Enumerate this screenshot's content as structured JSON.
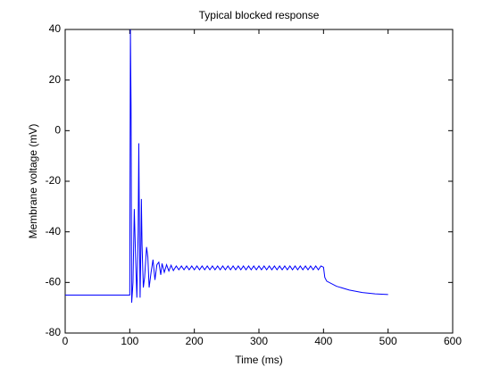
{
  "chart_data": {
    "type": "line",
    "title": "Typical blocked response",
    "x_label": "Time (ms)",
    "y_label": "Membrane voltage (mV)",
    "xlim": [
      0,
      600
    ],
    "ylim": [
      -80,
      40
    ],
    "xticks": [
      0,
      100,
      200,
      300,
      400,
      500,
      600
    ],
    "yticks": [
      -80,
      -60,
      -40,
      -20,
      0,
      20,
      40
    ],
    "x": [
      0,
      100,
      101,
      102,
      103,
      105,
      107,
      109,
      111,
      113,
      114,
      115,
      116,
      117,
      118,
      119,
      121,
      123,
      126,
      128,
      130,
      133,
      136,
      139,
      142,
      145,
      148,
      150,
      153.5,
      157,
      160.5,
      164,
      167.5,
      172,
      176,
      180,
      184,
      188,
      192,
      196,
      200,
      204,
      208,
      212,
      216,
      220,
      224,
      228,
      232,
      236,
      240,
      244,
      248,
      252,
      256,
      260,
      264,
      268,
      272,
      276,
      280,
      284,
      288,
      292,
      296,
      300,
      304,
      308,
      312,
      316,
      320,
      324,
      328,
      332,
      336,
      340,
      344,
      348,
      352,
      356,
      360,
      364,
      368,
      372,
      376,
      380,
      384,
      388,
      392,
      396,
      400,
      402,
      405,
      420,
      440,
      460,
      480,
      500
    ],
    "series": [
      {
        "color": "#0000ff",
        "values": [
          -65,
          -65,
          40,
          10,
          -68,
          -60,
          -31,
          -50,
          -66,
          -40,
          -5,
          -40,
          -66,
          -50,
          -27,
          -45,
          -62,
          -58,
          -46,
          -50,
          -62,
          -56,
          -51,
          -59,
          -53,
          -52,
          -57,
          -52.5,
          -56,
          -53,
          -55.5,
          -53.2,
          -55.3,
          -53.5,
          -55,
          -53.5,
          -55,
          -53.5,
          -55,
          -53.5,
          -55,
          -53.5,
          -55,
          -53.5,
          -55,
          -53.5,
          -55,
          -53.5,
          -55,
          -53.5,
          -55,
          -53.5,
          -55,
          -53.5,
          -55,
          -53.5,
          -55,
          -53.5,
          -55,
          -53.5,
          -55,
          -53.5,
          -55,
          -53.5,
          -55,
          -53.5,
          -55,
          -53.5,
          -55,
          -53.5,
          -55,
          -53.5,
          -55,
          -53.5,
          -55,
          -53.5,
          -55,
          -53.5,
          -55,
          -53.5,
          -55,
          -53.5,
          -55,
          -53.5,
          -55,
          -53.5,
          -55,
          -53.5,
          -55,
          -53.5,
          -54,
          -58,
          -59.5,
          -61.5,
          -63,
          -64,
          -64.5,
          -64.8
        ]
      }
    ]
  }
}
